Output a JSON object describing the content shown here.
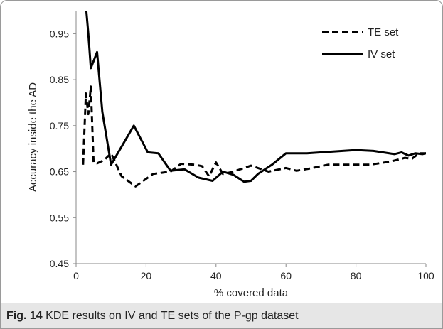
{
  "chart_data": {
    "type": "line",
    "title": "",
    "xlabel": "% covered data",
    "ylabel": "Accuracy inside the AD",
    "xlim": [
      0,
      100
    ],
    "ylim": [
      0.45,
      1.0
    ],
    "xticks": [
      0,
      20,
      40,
      60,
      80,
      100
    ],
    "yticks": [
      0.45,
      0.55,
      0.65,
      0.75,
      0.85,
      0.95
    ],
    "xtick_labels": [
      "0",
      "20",
      "40",
      "60",
      "80",
      "100"
    ],
    "ytick_labels": [
      "0.45",
      "0.55",
      "0.65",
      "0.75",
      "0.85",
      "0.95"
    ],
    "grid": false,
    "legend_position": "top-right",
    "series": [
      {
        "name": "TE set",
        "style": "dashed",
        "x": [
          2,
          2.8,
          3.5,
          4.2,
          5,
          6,
          8,
          10,
          13,
          17,
          22,
          27,
          30,
          34,
          36,
          38,
          40,
          42,
          45,
          50,
          55,
          60,
          63,
          67,
          72,
          78,
          84,
          90,
          94,
          96,
          98,
          100
        ],
        "y": [
          0.665,
          0.82,
          0.775,
          0.835,
          0.67,
          0.668,
          0.675,
          0.69,
          0.64,
          0.618,
          0.645,
          0.65,
          0.667,
          0.665,
          0.662,
          0.64,
          0.67,
          0.645,
          0.65,
          0.663,
          0.65,
          0.658,
          0.652,
          0.657,
          0.665,
          0.665,
          0.665,
          0.672,
          0.68,
          0.678,
          0.69,
          0.69
        ]
      },
      {
        "name": "IV set",
        "style": "solid",
        "x": [
          2,
          2.8,
          3.5,
          4.2,
          6,
          7.5,
          10,
          16.5,
          20.5,
          23.5,
          27,
          31,
          35,
          39,
          42,
          45,
          48,
          50,
          52,
          56,
          60,
          66,
          72,
          80,
          85,
          91,
          93,
          95,
          97,
          99,
          100
        ],
        "y": [
          1.0,
          1.01,
          0.95,
          0.875,
          0.91,
          0.78,
          0.665,
          0.75,
          0.692,
          0.69,
          0.652,
          0.655,
          0.637,
          0.63,
          0.65,
          0.643,
          0.628,
          0.63,
          0.645,
          0.665,
          0.69,
          0.69,
          0.693,
          0.697,
          0.695,
          0.688,
          0.692,
          0.685,
          0.69,
          0.688,
          0.69
        ]
      }
    ]
  },
  "caption": {
    "label": "Fig. 14",
    "text": "KDE results on IV and TE sets of the P-gp dataset"
  },
  "colors": {
    "line": "#000000",
    "axis": "#888888",
    "caption_bg": "#e6e6e6"
  }
}
